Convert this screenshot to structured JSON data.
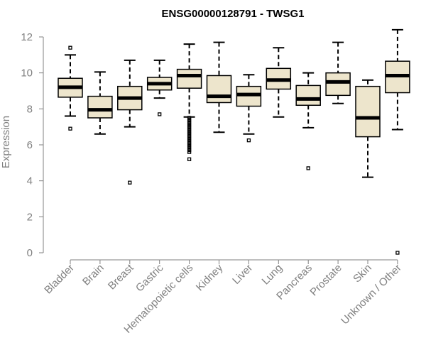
{
  "chart_data": {
    "type": "boxplot",
    "title": "ENSG00000128791 - TWSG1",
    "ylabel": "Expression",
    "xlabel": "",
    "ylim": [
      0,
      12.3
    ],
    "yticks": [
      0,
      2,
      4,
      6,
      8,
      10,
      12
    ],
    "grid": false,
    "box_fill": "#ede5cc",
    "categories": [
      "Bladder",
      "Brain",
      "Breast",
      "Gastric",
      "Hematopoietic cells",
      "Kidney",
      "Liver",
      "Lung",
      "Pancreas",
      "Prostate",
      "Skin",
      "Unknown / Other"
    ],
    "boxes": [
      {
        "min": 7.6,
        "q1": 8.65,
        "median": 9.2,
        "q3": 9.7,
        "max": 11.0,
        "outliers": [
          11.4,
          6.9
        ]
      },
      {
        "min": 6.6,
        "q1": 7.5,
        "median": 7.95,
        "q3": 8.7,
        "max": 10.05,
        "outliers": []
      },
      {
        "min": 7.0,
        "q1": 7.95,
        "median": 8.6,
        "q3": 9.25,
        "max": 10.7,
        "outliers": [
          3.9
        ]
      },
      {
        "min": 8.6,
        "q1": 9.05,
        "median": 9.4,
        "q3": 9.75,
        "max": 10.7,
        "outliers": [
          7.7
        ]
      },
      {
        "min": 7.55,
        "q1": 9.15,
        "median": 9.85,
        "q3": 10.2,
        "max": 11.6,
        "outliers": [
          7.5,
          7.4,
          7.3,
          7.2,
          7.1,
          7.0,
          6.9,
          6.8,
          6.7,
          6.6,
          6.5,
          6.4,
          6.3,
          6.2,
          6.1,
          6.0,
          5.9,
          5.8,
          5.7,
          5.6,
          5.2
        ]
      },
      {
        "min": 6.7,
        "q1": 8.35,
        "median": 8.7,
        "q3": 9.85,
        "max": 11.7,
        "outliers": []
      },
      {
        "min": 6.6,
        "q1": 8.15,
        "median": 8.8,
        "q3": 9.25,
        "max": 9.9,
        "outliers": [
          6.25
        ]
      },
      {
        "min": 7.55,
        "q1": 9.1,
        "median": 9.6,
        "q3": 10.25,
        "max": 11.4,
        "outliers": []
      },
      {
        "min": 6.95,
        "q1": 8.2,
        "median": 8.55,
        "q3": 9.3,
        "max": 10.0,
        "outliers": [
          4.7
        ]
      },
      {
        "min": 8.3,
        "q1": 8.75,
        "median": 9.5,
        "q3": 10.0,
        "max": 11.7,
        "outliers": []
      },
      {
        "min": 4.2,
        "q1": 6.45,
        "median": 7.5,
        "q3": 9.25,
        "max": 9.6,
        "outliers": []
      },
      {
        "min": 6.85,
        "q1": 8.9,
        "median": 9.85,
        "q3": 10.65,
        "max": 12.4,
        "outliers": [
          0.0
        ]
      }
    ]
  }
}
